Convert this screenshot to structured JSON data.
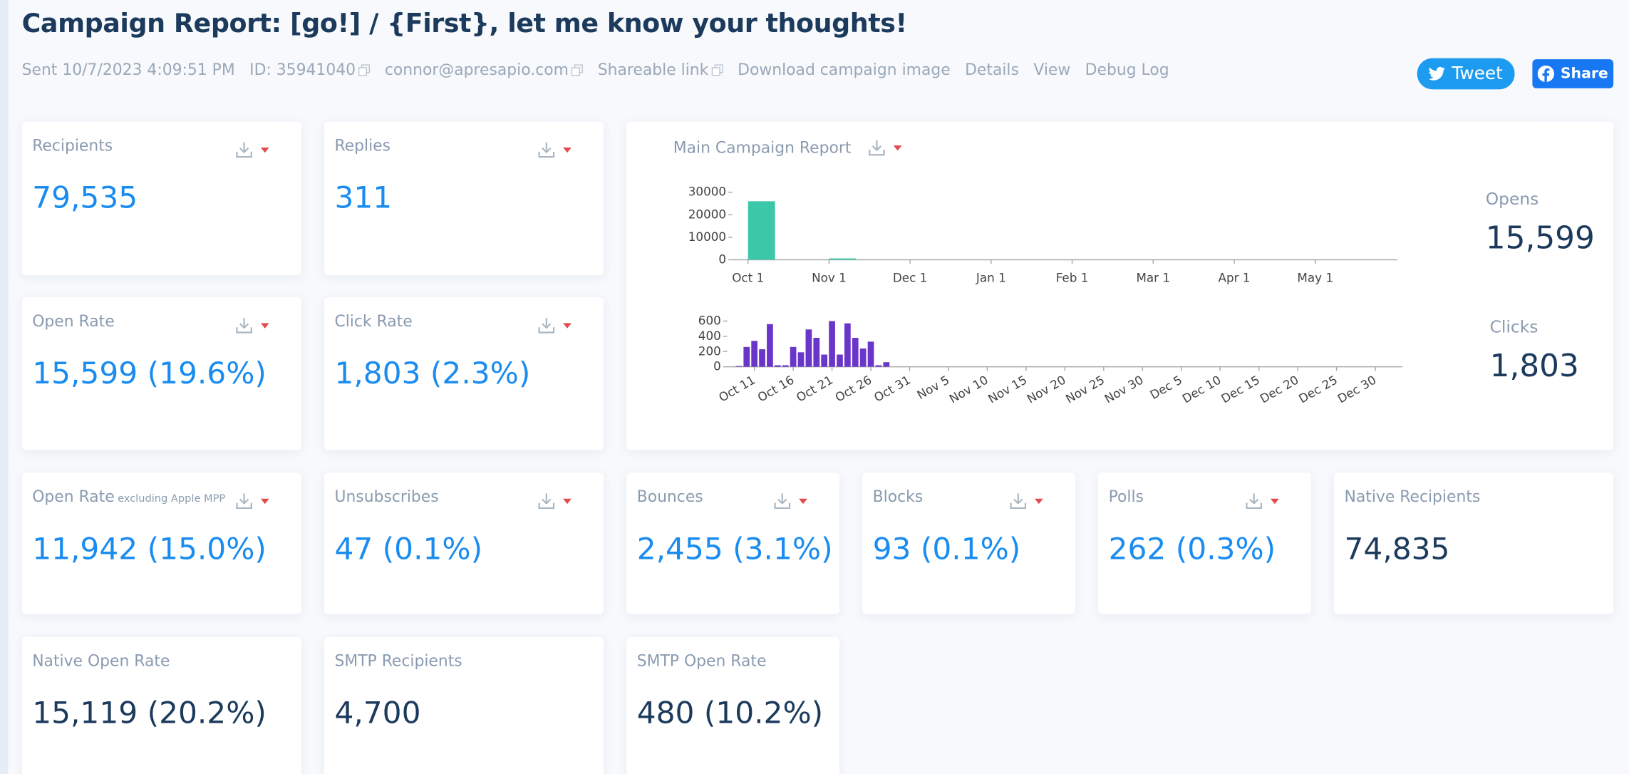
{
  "header": {
    "title": "Campaign Report: [go!] / {First}, let me know your thoughts!",
    "meta": [
      {
        "text": "Sent 10/7/2023 4:09:51 PM",
        "copy": false
      },
      {
        "text": "ID: 35941040",
        "copy": true
      },
      {
        "text": "connor@apresapio.com",
        "copy": true
      },
      {
        "text": "Shareable link",
        "copy": true
      },
      {
        "text": "Download campaign image",
        "copy": false
      },
      {
        "text": "Details",
        "copy": false
      },
      {
        "text": "View",
        "copy": false
      },
      {
        "text": "Debug Log",
        "copy": false
      }
    ],
    "tweet": "Tweet",
    "share": "Share"
  },
  "cards": [
    {
      "label": "Recipients",
      "value": "79,535",
      "color": "#1a8cf0",
      "download": true
    },
    {
      "label": "Replies",
      "value": "311",
      "color": "#1a8cf0",
      "download": true
    },
    {
      "label": "Open Rate",
      "value": "15,599 (19.6%)",
      "color": "#1a8cf0",
      "download": true
    },
    {
      "label": "Click Rate",
      "value": "1,803 (2.3%)",
      "color": "#1a8cf0",
      "download": true
    },
    {
      "label": "Open Rate",
      "sublabel": "excluding Apple MPP",
      "value": "11,942 (15.0%)",
      "color": "#1a8cf0",
      "download": true
    },
    {
      "label": "Unsubscribes",
      "value": "47 (0.1%)",
      "color": "#1a8cf0",
      "download": true
    },
    {
      "label": "Bounces",
      "value": "2,455 (3.1%)",
      "color": "#1a8cf0",
      "download": true
    },
    {
      "label": "Blocks",
      "value": "93 (0.1%)",
      "color": "#1a8cf0",
      "download": true
    },
    {
      "label": "Polls",
      "value": "262 (0.3%)",
      "color": "#1a8cf0",
      "download": true
    },
    {
      "label": "Native Recipients",
      "value": "74,835",
      "color": "#1b3a5c",
      "download": false
    },
    {
      "label": "Native Open Rate",
      "value": "15,119 (20.2%)",
      "color": "#1b3a5c",
      "download": false
    },
    {
      "label": "SMTP Recipients",
      "value": "4,700",
      "color": "#1b3a5c",
      "download": false
    },
    {
      "label": "SMTP Open Rate",
      "value": "480 (10.2%)",
      "color": "#1b3a5c",
      "download": false
    }
  ],
  "main_report": {
    "title": "Main Campaign Report",
    "opens_label": "Opens",
    "opens": "15,599",
    "clicks_label": "Clicks",
    "clicks": "1,803"
  },
  "chart_data": [
    {
      "type": "bar",
      "categories": [
        "Oct 1",
        "Nov 1",
        "Dec 1",
        "Jan 1",
        "Feb 1",
        "Mar 1",
        "Apr 1",
        "May 1"
      ],
      "values": [
        26000,
        600,
        0,
        0,
        0,
        0,
        0,
        0
      ],
      "color": "#3cc7a8",
      "ylim": [
        0,
        30000
      ],
      "yticks": [
        0,
        10000,
        20000,
        30000
      ]
    },
    {
      "type": "bar",
      "categories": [
        null,
        null,
        null,
        "Oct 11",
        null,
        null,
        null,
        null,
        "Oct 16",
        null,
        null,
        null,
        null,
        "Oct 21",
        null,
        null,
        null,
        null,
        "Oct 26",
        null,
        null,
        null,
        null,
        "Oct 31",
        null,
        null,
        null,
        null,
        "Nov 5",
        null,
        null,
        null,
        null,
        "Nov 10",
        null,
        null,
        null,
        null,
        "Nov 15",
        null,
        null,
        null,
        null,
        "Nov 20",
        null,
        null,
        null,
        null,
        "Nov 25",
        null,
        null,
        null,
        null,
        "Nov 30",
        null,
        null,
        null,
        null,
        "Dec 5",
        null,
        null,
        null,
        null,
        "Dec 10",
        null,
        null,
        null,
        null,
        "Dec 15",
        null,
        null,
        null,
        null,
        "Dec 20",
        null,
        null,
        null,
        null,
        "Dec 25",
        null,
        null,
        null,
        null,
        "Dec 30",
        null,
        null,
        null
      ],
      "values": [
        0,
        10,
        260,
        340,
        230,
        560,
        20,
        20,
        260,
        190,
        490,
        380,
        160,
        600,
        160,
        570,
        380,
        240,
        330,
        20,
        60,
        0,
        0,
        0,
        0,
        0,
        0,
        0,
        0,
        0,
        0,
        0,
        0,
        0,
        0,
        0,
        0,
        0,
        0,
        0,
        0,
        0,
        0,
        0,
        0,
        0,
        0,
        0,
        0,
        0,
        0,
        0,
        0,
        0,
        0,
        0,
        0,
        0,
        0,
        0,
        0,
        0,
        0,
        0,
        0,
        0,
        0,
        0,
        0,
        0,
        0,
        0,
        0,
        0,
        0,
        0,
        0,
        0,
        0,
        0,
        0,
        0,
        0,
        0,
        0,
        0,
        0
      ],
      "color": "#6a35c9",
      "ylim": [
        0,
        600
      ],
      "yticks": [
        0,
        200,
        400,
        600
      ]
    }
  ]
}
